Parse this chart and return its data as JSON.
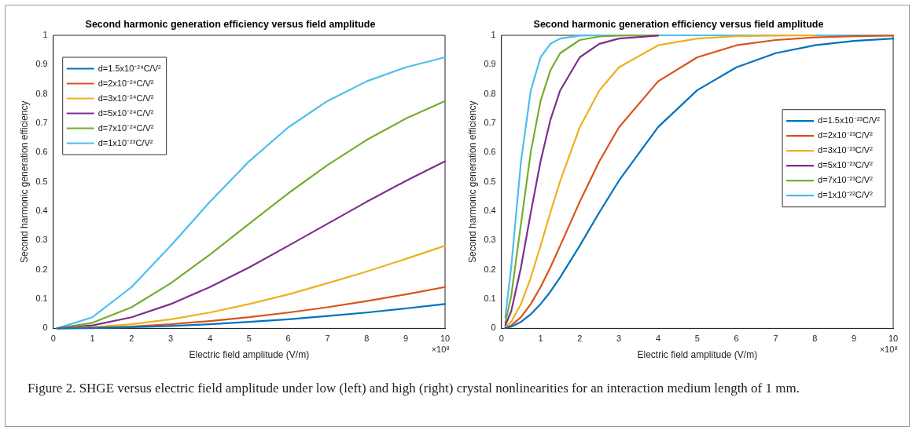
{
  "chart_data": [
    {
      "type": "line",
      "title": "Second harmonic generation efficiency versus field amplitude",
      "xlabel": "Electric field amplitude (V/m)",
      "ylabel": "Second harmonic generation efficiency",
      "x": [
        0.1,
        1,
        2,
        3,
        4,
        5,
        6,
        7,
        8,
        9,
        10
      ],
      "series": [
        {
          "name": "d=1.5x10⁻²⁴C/V²",
          "color": "#0072bd",
          "values": [
            0,
            0.001,
            0.004,
            0.008,
            0.014,
            0.022,
            0.031,
            0.042,
            0.054,
            0.068,
            0.083
          ]
        },
        {
          "name": "d=2x10⁻²⁴C/V²",
          "color": "#d95319",
          "values": [
            0,
            0.002,
            0.006,
            0.014,
            0.025,
            0.038,
            0.054,
            0.072,
            0.093,
            0.116,
            0.141
          ]
        },
        {
          "name": "d=3x10⁻²⁴C/V²",
          "color": "#edb120",
          "values": [
            0,
            0.004,
            0.014,
            0.031,
            0.054,
            0.083,
            0.116,
            0.154,
            0.194,
            0.237,
            0.282
          ]
        },
        {
          "name": "d=5x10⁻²⁴C/V²",
          "color": "#7e2f8e",
          "values": [
            0,
            0.01,
            0.038,
            0.083,
            0.141,
            0.208,
            0.282,
            0.357,
            0.432,
            0.503,
            0.57
          ]
        },
        {
          "name": "d=7x10⁻²⁴C/V²",
          "color": "#77ac30",
          "values": [
            0,
            0.019,
            0.072,
            0.154,
            0.252,
            0.357,
            0.461,
            0.557,
            0.643,
            0.716,
            0.776
          ]
        },
        {
          "name": "d=1x10⁻²³C/V²",
          "color": "#4dbeee",
          "values": [
            0,
            0.038,
            0.141,
            0.282,
            0.432,
            0.57,
            0.686,
            0.776,
            0.843,
            0.891,
            0.925
          ]
        }
      ],
      "xlim": [
        0,
        10
      ],
      "xticks": [
        0,
        1,
        2,
        3,
        4,
        5,
        6,
        7,
        8,
        9,
        10
      ],
      "ylim": [
        0,
        1
      ],
      "yticks": [
        0,
        0.1,
        0.2,
        0.3,
        0.4,
        0.5,
        0.6,
        0.7,
        0.8,
        0.9,
        1
      ],
      "grid": false,
      "legend": "top left",
      "marker": "none",
      "line_style": "solid",
      "annotations": [
        "×10⁸",
        "Figure 2. SHGE versus electric field amplitude under low (left) and high (right) crystal nonlinearities for an interaction medium length of 1 mm."
      ]
    },
    {
      "type": "line",
      "title": "Second harmonic generation efficiency versus field amplitude",
      "xlabel": "Electric field amplitude (V/m)",
      "ylabel": "Second harmonic generation efficiency",
      "x": [
        0.1,
        0.25,
        0.5,
        0.75,
        1,
        1.25,
        1.5,
        2,
        2.5,
        3,
        4,
        5,
        6,
        7,
        8,
        9,
        10
      ],
      "series": [
        {
          "name": "d=1.5x10⁻²³C/V²",
          "color": "#0072bd",
          "values": [
            0.001,
            0.006,
            0.022,
            0.048,
            0.083,
            0.125,
            0.174,
            0.282,
            0.396,
            0.504,
            0.687,
            0.813,
            0.891,
            0.939,
            0.966,
            0.981,
            0.989
          ]
        },
        {
          "name": "d=2x10⁻²³C/V²",
          "color": "#d95319",
          "values": [
            0.002,
            0.01,
            0.038,
            0.083,
            0.141,
            0.208,
            0.282,
            0.432,
            0.57,
            0.686,
            0.843,
            0.925,
            0.966,
            0.984,
            0.993,
            0.997,
            0.999
          ]
        },
        {
          "name": "d=3x10⁻²³C/V²",
          "color": "#edb120",
          "values": [
            0.004,
            0.022,
            0.083,
            0.173,
            0.282,
            0.395,
            0.503,
            0.686,
            0.812,
            0.891,
            0.966,
            0.989,
            0.997,
            0.999,
            1,
            null,
            null
          ]
        },
        {
          "name": "d=5x10⁻²³C/V²",
          "color": "#7e2f8e",
          "values": [
            0.01,
            0.058,
            0.208,
            0.395,
            0.57,
            0.711,
            0.812,
            0.925,
            0.971,
            0.989,
            0.999,
            null,
            null,
            null,
            null,
            null,
            null
          ]
        },
        {
          "name": "d=7x10⁻²³C/V²",
          "color": "#77ac30",
          "values": [
            0.019,
            0.11,
            0.357,
            0.602,
            0.776,
            0.88,
            0.939,
            0.984,
            0.996,
            0.999,
            1,
            null,
            null,
            null,
            null,
            null,
            null
          ]
        },
        {
          "name": "d=1x10⁻²²C/V²",
          "color": "#4dbeee",
          "values": [
            0.038,
            0.208,
            0.57,
            0.812,
            0.925,
            0.971,
            0.989,
            0.999,
            1,
            1,
            1,
            1,
            1,
            1,
            1,
            1,
            1
          ]
        }
      ],
      "xlim": [
        0,
        10
      ],
      "xticks": [
        0,
        1,
        2,
        3,
        4,
        5,
        6,
        7,
        8,
        9,
        10
      ],
      "ylim": [
        0,
        1
      ],
      "yticks": [
        0,
        0.1,
        0.2,
        0.3,
        0.4,
        0.5,
        0.6,
        0.7,
        0.8,
        0.9,
        1
      ],
      "grid": false,
      "legend": "right",
      "marker": "none",
      "line_style": "solid",
      "annotations": [
        "×10⁸"
      ]
    }
  ]
}
